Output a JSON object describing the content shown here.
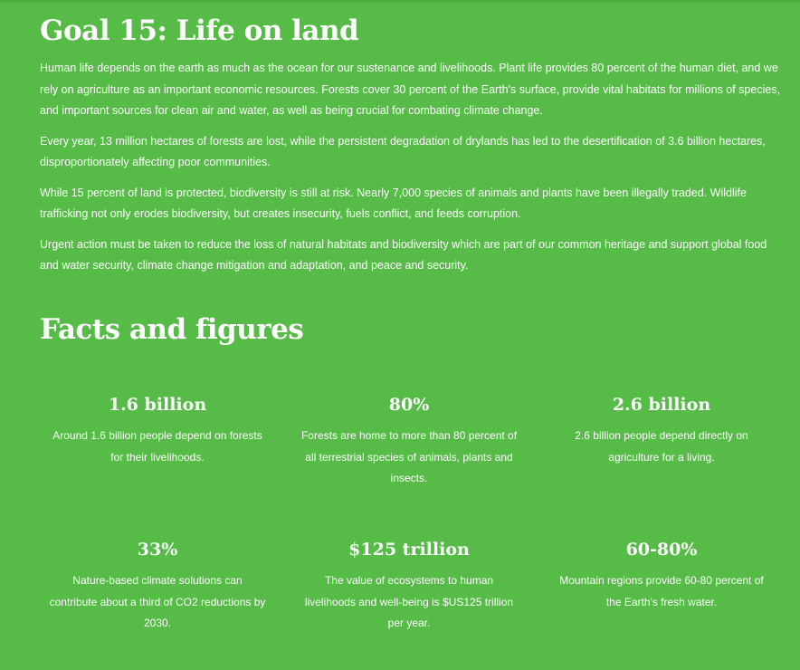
{
  "goal": {
    "title": "Goal 15: Life on land",
    "paragraphs": [
      "Human life depends on the earth as much as the ocean for our sustenance and livelihoods. Plant life provides 80 percent of the human diet, and we rely on agriculture as an important economic resources. Forests cover 30 percent of the Earth's surface, provide vital habitats for millions of species, and important sources for clean air and water, as well as being crucial for combating climate change.",
      "Every year, 13 million hectares of forests are lost, while the persistent degradation of drylands has led to the desertification of 3.6 billion hectares, disproportionately affecting poor communities.",
      "While 15 percent of land is protected, biodiversity is still at risk. Nearly 7,000 species of animals and plants have been illegally traded. Wildlife trafficking not only erodes biodiversity, but creates insecurity, fuels conflict, and feeds corruption.",
      "Urgent action must be taken to reduce the loss of natural habitats and biodiversity which are part of our common heritage and support global food and water security, climate change mitigation and adaptation, and peace and security."
    ]
  },
  "facts": {
    "title": "Facts and figures",
    "items": [
      {
        "value": "1.6 billion",
        "desc": "Around 1.6 billion people depend on forests for their livelihoods."
      },
      {
        "value": "80%",
        "desc": "Forests are home to more than 80 percent of all terrestrial species of animals, plants and insects."
      },
      {
        "value": "2.6 billion",
        "desc": "2.6 billion people depend directly on agriculture for a living."
      },
      {
        "value": "33%",
        "desc": "Nature-based climate solutions can contribute about a third of CO2 reductions by 2030."
      },
      {
        "value": "$125 trillion",
        "desc": "The value of ecosystems to human livelihoods and well-being is $US125 trillion per year."
      },
      {
        "value": "60-80%",
        "desc": "Mountain regions provide 60-80 percent of the Earth's fresh water."
      }
    ]
  },
  "colors": {
    "background": "#56bc47",
    "text": "#ffffff"
  }
}
